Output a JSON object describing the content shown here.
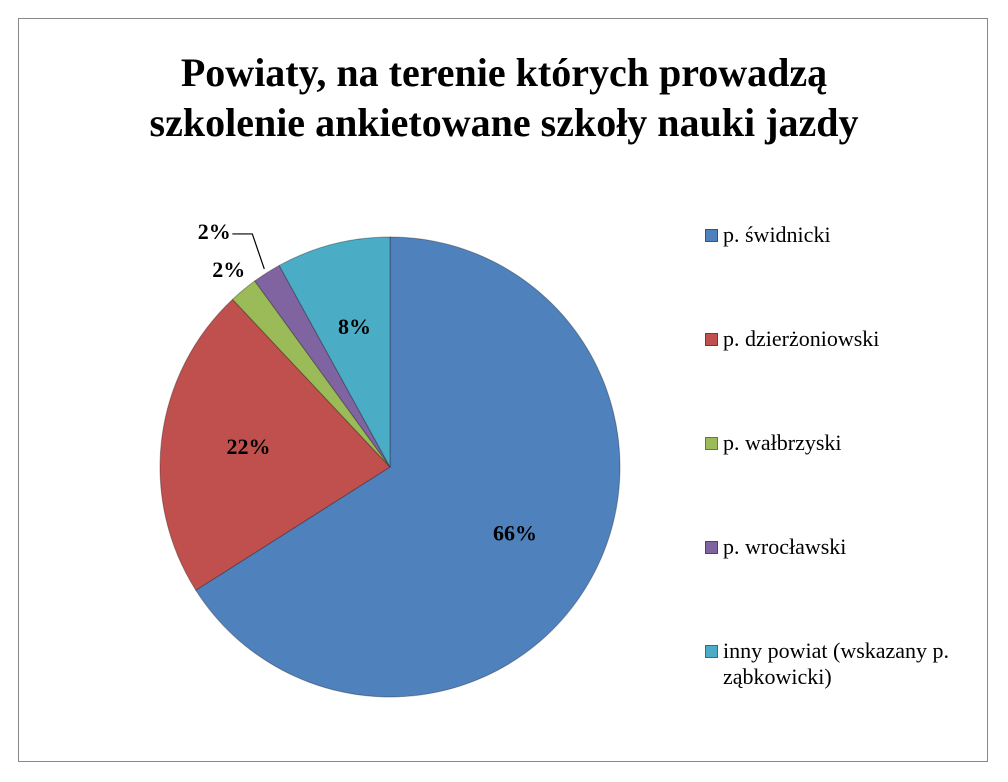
{
  "chart_data": {
    "type": "pie",
    "title": "Powiaty, na terenie których prowadzą szkolenie ankietowane szkoły nauki jazdy",
    "categories": [
      "p. świdnicki",
      "p. dzierżoniowski",
      "p. wałbrzyski",
      "p. wrocławski",
      "inny powiat (wskazany p. ząbkowicki)"
    ],
    "values": [
      66,
      22,
      2,
      2,
      8
    ],
    "value_labels": [
      "66%",
      "22%",
      "2%",
      "2%",
      "8%"
    ],
    "colors": [
      "#4f81bd",
      "#c0504d",
      "#9bbb59",
      "#8064a2",
      "#4bacc6"
    ],
    "legend": "right"
  }
}
